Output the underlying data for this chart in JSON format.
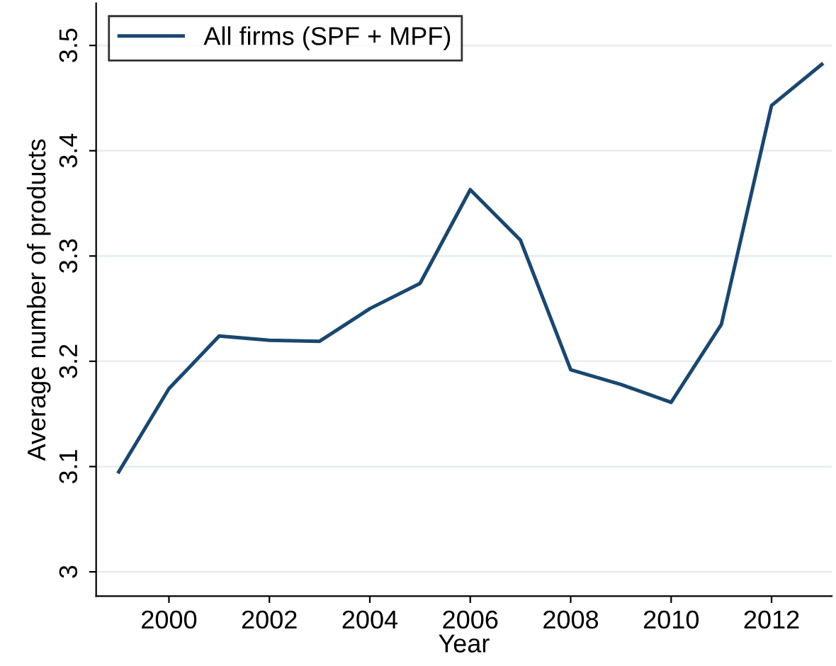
{
  "chart_data": {
    "type": "line",
    "xlabel": "Year",
    "ylabel": "Average number of products",
    "x": [
      1999,
      2000,
      2001,
      2002,
      2003,
      2004,
      2005,
      2006,
      2007,
      2008,
      2009,
      2010,
      2011,
      2012,
      2013
    ],
    "series": [
      {
        "name": "All firms (SPF + MPF)",
        "color": "#1a476f",
        "values": [
          3.095,
          3.174,
          3.224,
          3.22,
          3.219,
          3.25,
          3.274,
          3.363,
          3.315,
          3.192,
          3.178,
          3.161,
          3.235,
          3.443,
          3.482
        ]
      }
    ],
    "xlim": [
      1998.55,
      2013.2
    ],
    "xticks": [
      2000,
      2002,
      2004,
      2006,
      2008,
      2010,
      2012
    ],
    "ylim": [
      2.977,
      3.54
    ],
    "yticks": [
      {
        "value": 3,
        "label": "3"
      },
      3.1,
      3.2,
      3.3,
      3.4,
      3.5
    ],
    "grid": "y",
    "legend": "top left",
    "marker": "none",
    "line_style": "solid"
  }
}
